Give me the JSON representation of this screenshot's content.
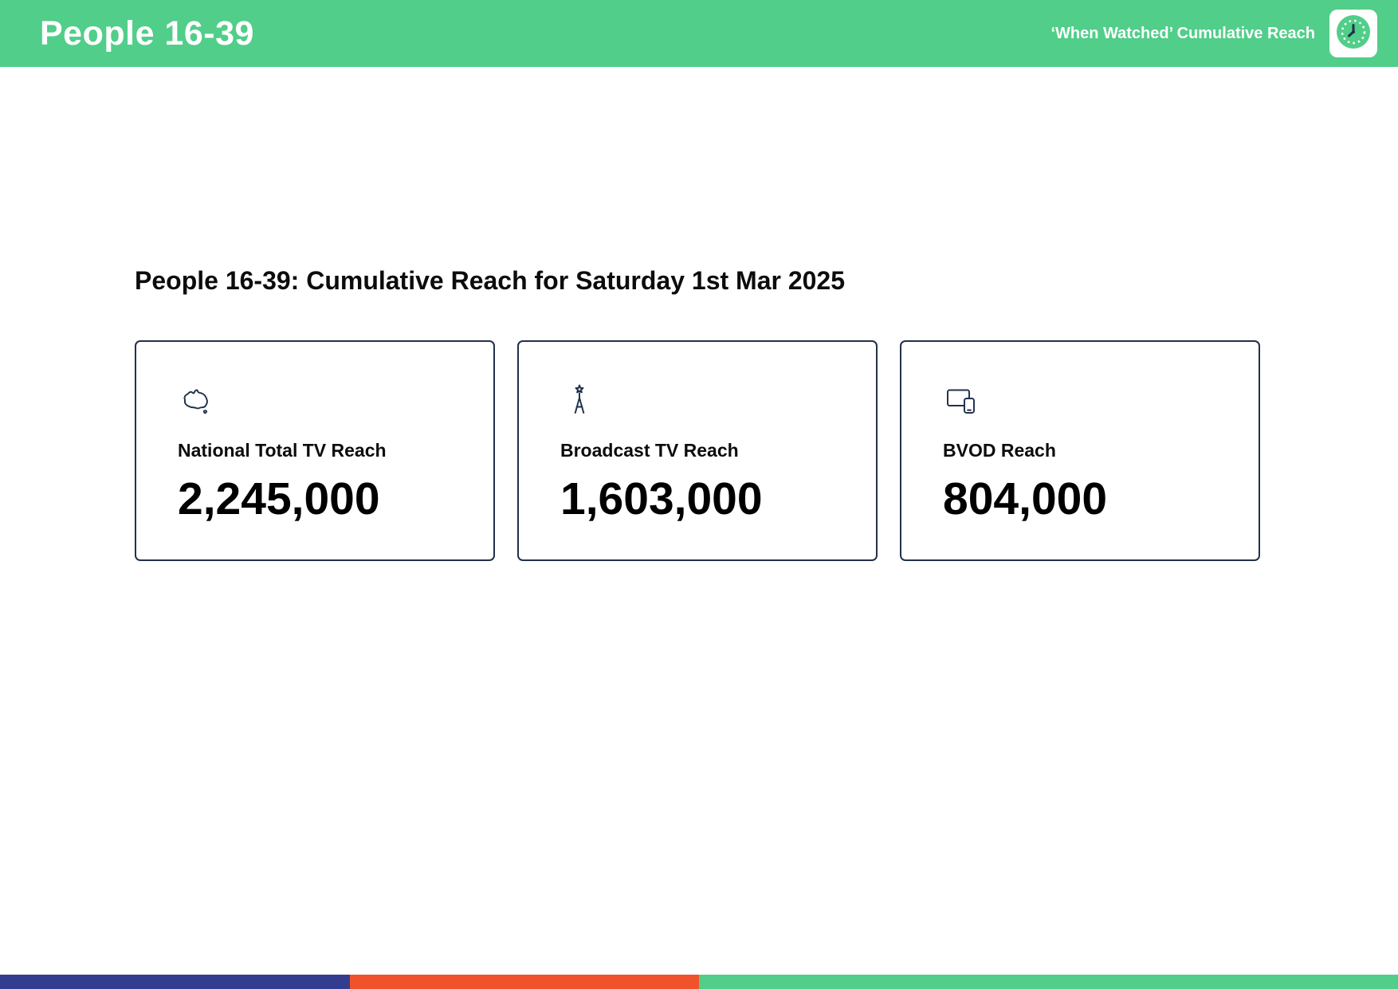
{
  "header": {
    "title": "People 16-39",
    "right_label": "‘When Watched’ Cumulative Reach",
    "logo_icon": "clock-icon"
  },
  "main": {
    "heading": "People 16-39: Cumulative Reach for Saturday 1st Mar 2025",
    "cards": [
      {
        "icon": "australia-map-icon",
        "label": "National Total TV Reach",
        "value": "2,245,000"
      },
      {
        "icon": "broadcast-tower-icon",
        "label": "Broadcast TV Reach",
        "value": "1,603,000"
      },
      {
        "icon": "devices-icon",
        "label": "BVOD Reach",
        "value": "804,000"
      }
    ]
  },
  "footer": {
    "segments": [
      {
        "name": "footer-segment-navy",
        "color": "#333D8F",
        "width_pct": 25
      },
      {
        "name": "footer-segment-orange",
        "color": "#F0532B",
        "width_pct": 25
      },
      {
        "name": "footer-segment-green",
        "color": "#51CE89",
        "width_pct": 50
      }
    ]
  },
  "colors": {
    "header_green": "#51CE89",
    "icon_navy": "#22304A",
    "footer_blue": "#333D8F",
    "footer_orange": "#F0532B"
  }
}
